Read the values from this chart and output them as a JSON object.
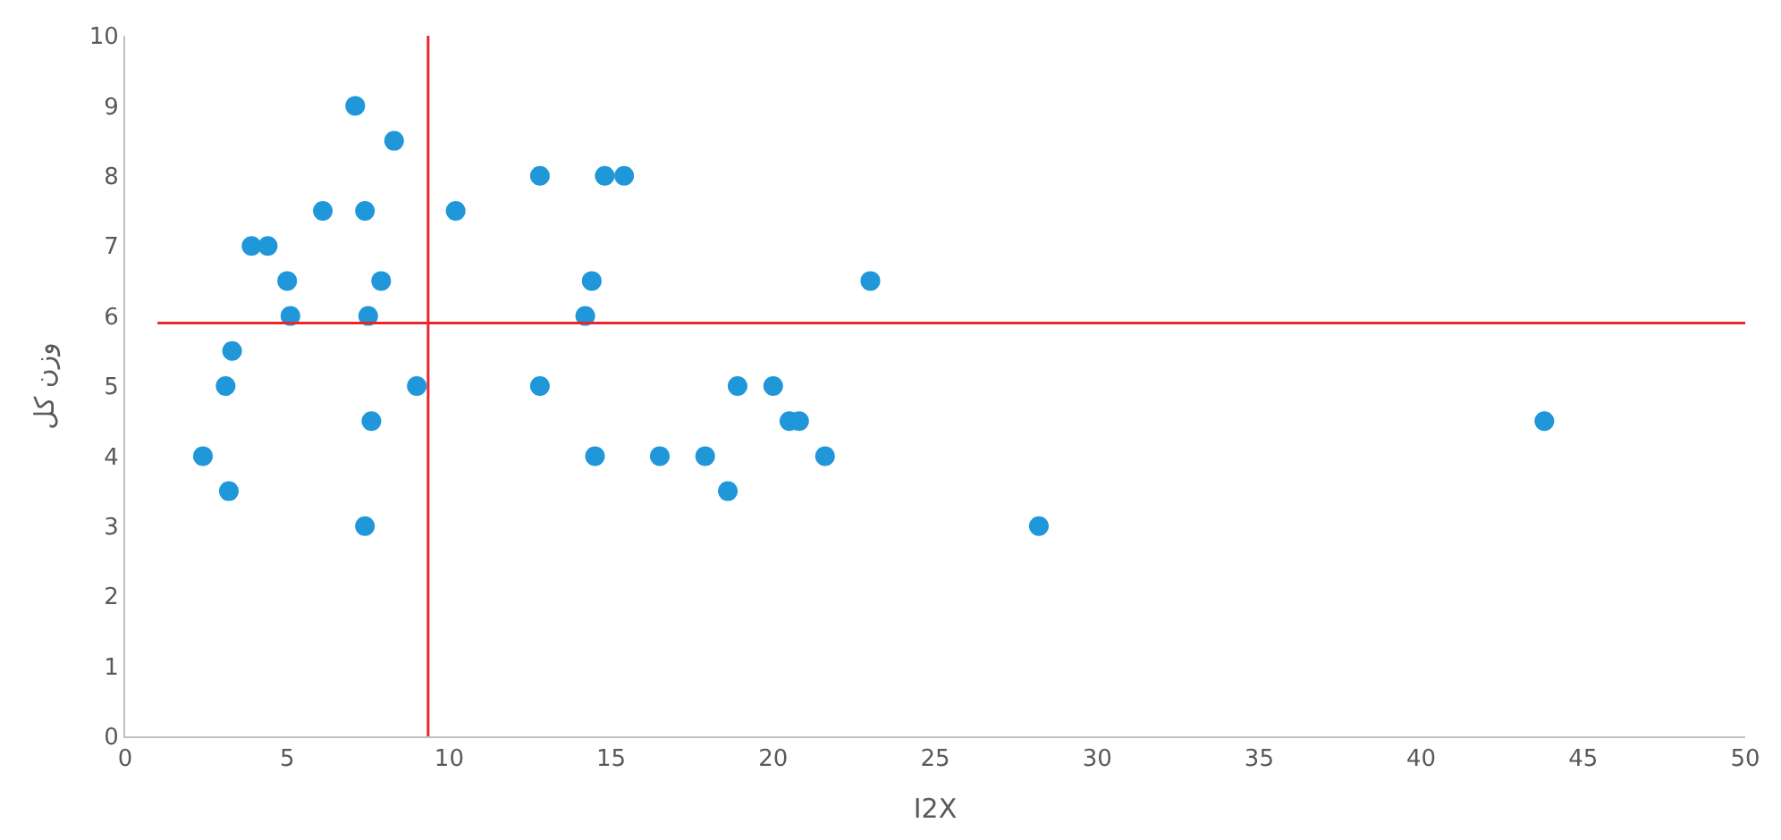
{
  "chart_data": {
    "type": "scatter",
    "xlabel": "I2X",
    "ylabel": "وزن کل",
    "x": [
      2.4,
      3.1,
      3.2,
      3.3,
      3.9,
      4.4,
      5.0,
      5.1,
      6.1,
      7.1,
      7.4,
      7.4,
      7.5,
      7.6,
      7.9,
      8.3,
      9.0,
      10.2,
      12.8,
      12.8,
      14.2,
      14.4,
      14.5,
      14.8,
      15.4,
      16.5,
      17.9,
      18.6,
      18.9,
      20.0,
      20.5,
      20.8,
      21.6,
      23.0,
      28.2,
      43.8
    ],
    "series": [
      {
        "color": "#1f97d8",
        "values": [
          4,
          5,
          3.5,
          5.5,
          7,
          7,
          6.5,
          6,
          7.5,
          9,
          7.5,
          3,
          6,
          4.5,
          6.5,
          8.5,
          5,
          7.5,
          8,
          5,
          6,
          6.5,
          4,
          8,
          8,
          4,
          4,
          3.5,
          5,
          5,
          4.5,
          4.5,
          4,
          6.5,
          3,
          4.5
        ]
      }
    ],
    "xlim": [
      0,
      50
    ],
    "xticks": [
      0,
      5,
      10,
      15,
      20,
      25,
      30,
      35,
      40,
      45,
      50
    ],
    "ylim": [
      0,
      10
    ],
    "yticks": [
      0,
      1,
      2,
      3,
      4,
      5,
      6,
      7,
      8,
      9,
      10
    ],
    "ref_lines": [
      {
        "axis": "x",
        "value": 9.35,
        "color": "#e8262c"
      },
      {
        "axis": "y",
        "value": 5.9,
        "color": "#e8262c"
      }
    ],
    "marker": "circle"
  }
}
